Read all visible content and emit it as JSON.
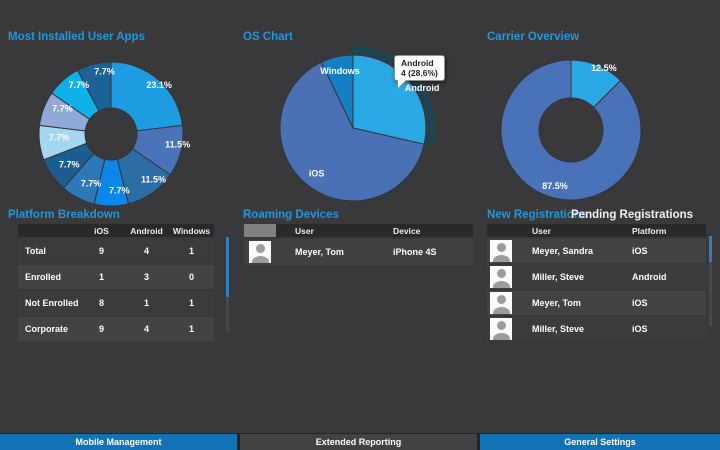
{
  "sections": {
    "apps": {
      "title": "Most Installed User Apps"
    },
    "os": {
      "title": "OS Chart"
    },
    "carrier": {
      "title": "Carrier Overview"
    },
    "platform": {
      "title": "Platform Breakdown"
    },
    "roaming": {
      "title": "Roaming Devices"
    },
    "registrations": {
      "tab_new": "New Registrations",
      "tab_pending": "Pending Registrations",
      "active_tab": "New Registrations"
    }
  },
  "chart_data": [
    {
      "id": "apps",
      "type": "pie",
      "variant": "donut",
      "title": "Most Installed User Apps",
      "values": [
        23.1,
        11.5,
        11.5,
        7.7,
        7.7,
        7.7,
        7.7,
        7.7,
        7.7,
        7.7
      ],
      "labels": [
        "23.1%",
        "11.5%",
        "11.5%",
        "7.7%",
        "7.7%",
        "7.7%",
        "7.7%",
        "7.7%",
        "7.7%",
        "7.7%"
      ],
      "colors": [
        "#1e9ce2",
        "#4a73b9",
        "#2d6da6",
        "#0d86e9",
        "#2e78b7",
        "#1d5e90",
        "#a6d7f1",
        "#92a9d7",
        "#0fb1e8",
        "#1b6295"
      ],
      "unit": "percent",
      "legend": false
    },
    {
      "id": "os",
      "type": "pie",
      "title": "OS Chart",
      "series": [
        {
          "name": "Android",
          "value": 4,
          "pct": 28.6
        },
        {
          "name": "iOS",
          "value": 9,
          "pct": 64.3
        },
        {
          "name": "Windows",
          "value": 1,
          "pct": 7.1
        }
      ],
      "colors": [
        "#29a8e3",
        "#4a71b6",
        "#157fc2"
      ],
      "highlighted": "Android",
      "tooltip": {
        "line1": "Android",
        "line2": "4 (28.6%)"
      },
      "legend": false
    },
    {
      "id": "carrier",
      "type": "pie",
      "variant": "donut",
      "title": "Carrier Overview",
      "values": [
        12.5,
        87.5
      ],
      "labels": [
        "12.5%",
        "87.5%"
      ],
      "colors": [
        "#29a8e3",
        "#4a72b8"
      ],
      "unit": "percent",
      "legend": false
    }
  ],
  "tables": {
    "platform": {
      "columns": [
        "iOS",
        "Android",
        "Windows"
      ],
      "rows": [
        {
          "label": "Total",
          "values": [
            "9",
            "4",
            "1"
          ]
        },
        {
          "label": "Enrolled",
          "values": [
            "1",
            "3",
            "0"
          ]
        },
        {
          "label": "Not Enrolled",
          "values": [
            "8",
            "1",
            "1"
          ]
        },
        {
          "label": "Corporate",
          "values": [
            "9",
            "4",
            "1"
          ]
        }
      ]
    },
    "roaming": {
      "columns": [
        "User",
        "Device"
      ],
      "rows": [
        {
          "user": "Meyer, Tom",
          "device": "iPhone 4S"
        }
      ]
    },
    "registrations": {
      "columns": [
        "User",
        "Platform"
      ],
      "rows": [
        {
          "user": "Meyer, Sandra",
          "platform": "iOS"
        },
        {
          "user": "Miller, Steve",
          "platform": "Android"
        },
        {
          "user": "Meyer, Tom",
          "platform": "iOS"
        },
        {
          "user": "Miller, Steve",
          "platform": "iOS"
        }
      ]
    }
  },
  "footer": {
    "buttons": [
      {
        "label": "Mobile Management",
        "highlighted": true
      },
      {
        "label": "Extended Reporting",
        "highlighted": false
      },
      {
        "label": "General Settings",
        "highlighted": true
      }
    ]
  },
  "colors": {
    "accent_blue": "#2196dd",
    "nav_blue": "#1173b5",
    "scrollbar_blue": "#2e7fc2",
    "background": "#39393b"
  }
}
